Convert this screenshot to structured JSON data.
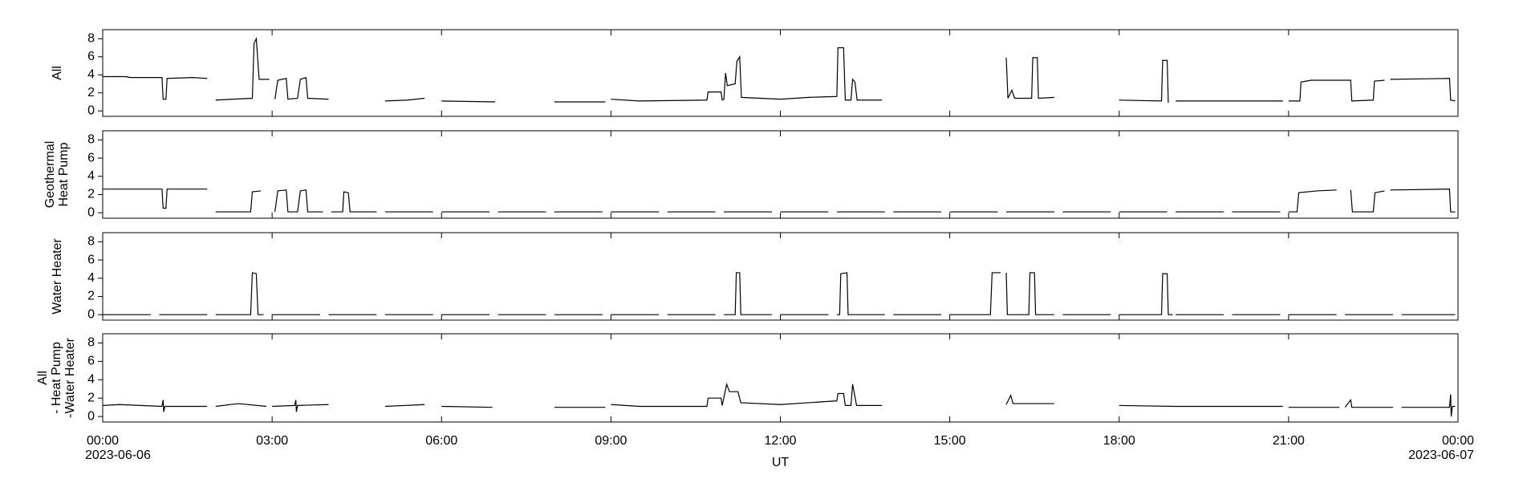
{
  "chart_data": [
    {
      "type": "line",
      "ylabel": [
        "All"
      ],
      "xlim": [
        0,
        24
      ],
      "ylim": [
        -0.6,
        9
      ],
      "yticks": [
        0,
        2,
        4,
        6,
        8
      ],
      "xticks": [
        {
          "value": 0,
          "label": "00:00"
        },
        {
          "value": 3,
          "label": "03:00"
        },
        {
          "value": 6,
          "label": "06:00"
        },
        {
          "value": 9,
          "label": "09:00"
        },
        {
          "value": 12,
          "label": "12:00"
        },
        {
          "value": 15,
          "label": "15:00"
        },
        {
          "value": 18,
          "label": "18:00"
        },
        {
          "value": 21,
          "label": "21:00"
        },
        {
          "value": 24,
          "label": "00:00"
        }
      ],
      "color": "#000000",
      "x": [
        0,
        0.4,
        0.5,
        1.05,
        1.07,
        1.12,
        1.14,
        1.6,
        1.85,
        1.9,
        2.0,
        2.3,
        2.65,
        2.68,
        2.72,
        2.77,
        2.95,
        3.0,
        3.05,
        3.1,
        3.25,
        3.28,
        3.45,
        3.5,
        3.6,
        3.63,
        4.0,
        4.5,
        5.0,
        5.4,
        5.7,
        5.8,
        6.0,
        6.95,
        7.5,
        8.0,
        8.9,
        8.95,
        9.0,
        9.5,
        10.7,
        10.72,
        10.95,
        10.97,
        11.0,
        11.03,
        11.06,
        11.2,
        11.23,
        11.28,
        11.31,
        12.0,
        12.5,
        13.0,
        13.02,
        13.12,
        13.15,
        13.25,
        13.28,
        13.32,
        13.36,
        13.8,
        15,
        16.0,
        16.03,
        16.1,
        16.15,
        16.45,
        16.47,
        16.55,
        16.57,
        16.85,
        17.5,
        18.0,
        18.75,
        18.77,
        18.85,
        18.87,
        18.95,
        19.0,
        20.9,
        20.95,
        21.0,
        21.2,
        21.22,
        21.4,
        22.1,
        22.12,
        22.5,
        22.52,
        22.7,
        22.75,
        22.8,
        23.85,
        23.87,
        23.95
      ],
      "values": [
        3.8,
        3.8,
        3.7,
        3.7,
        1.3,
        1.3,
        3.6,
        3.7,
        3.6,
        null,
        1.2,
        1.3,
        1.4,
        7.5,
        8,
        3.5,
        3.5,
        null,
        1.3,
        3.4,
        3.6,
        1.3,
        1.4,
        3.5,
        3.7,
        1.4,
        1.3,
        null,
        1.1,
        1.2,
        1.4,
        null,
        1.1,
        1.0,
        null,
        1.0,
        1.0,
        null,
        1.3,
        1.1,
        1.2,
        2.1,
        2.1,
        1.2,
        1.3,
        4.2,
        2.8,
        3.0,
        5.5,
        6.0,
        1.5,
        1.3,
        1.5,
        1.6,
        7.0,
        7.0,
        1.2,
        1.2,
        3.5,
        3.2,
        1.2,
        1.2,
        null,
        5.9,
        1.4,
        2.3,
        1.4,
        1.4,
        5.9,
        5.9,
        1.4,
        1.5,
        null,
        1.2,
        1.1,
        5.6,
        5.6,
        0.9,
        null,
        1.1,
        1.1,
        null,
        1.1,
        1.1,
        3.2,
        3.4,
        3.4,
        1.1,
        1.2,
        3.3,
        3.4,
        null,
        3.5,
        3.6,
        1.2,
        1.1
      ]
    },
    {
      "type": "line",
      "ylabel": [
        "Geothermal",
        "Heat Pump"
      ],
      "xlim": [
        0,
        24
      ],
      "ylim": [
        -0.6,
        9
      ],
      "yticks": [
        0,
        2,
        4,
        6,
        8
      ],
      "xticks": [
        {
          "value": 0,
          "label": "00:00"
        },
        {
          "value": 3,
          "label": "03:00"
        },
        {
          "value": 6,
          "label": "06:00"
        },
        {
          "value": 9,
          "label": "09:00"
        },
        {
          "value": 12,
          "label": "12:00"
        },
        {
          "value": 15,
          "label": "15:00"
        },
        {
          "value": 18,
          "label": "18:00"
        },
        {
          "value": 21,
          "label": "21:00"
        },
        {
          "value": 24,
          "label": "00:00"
        }
      ],
      "color": "#000000",
      "x": [
        0,
        1.05,
        1.07,
        1.12,
        1.14,
        1.85,
        1.9,
        2.0,
        2.62,
        2.65,
        2.8,
        2.9,
        3.05,
        3.1,
        3.25,
        3.28,
        3.45,
        3.5,
        3.6,
        3.63,
        3.9,
        4.0,
        4.05,
        4.25,
        4.27,
        4.35,
        4.38,
        4.85,
        4.9,
        5,
        5.85,
        5.9,
        6,
        6.85,
        6.9,
        7,
        7.85,
        7.9,
        8,
        8.85,
        8.9,
        9,
        9.85,
        9.9,
        10,
        10.85,
        10.9,
        11,
        11.85,
        11.9,
        12,
        12.85,
        12.9,
        13,
        13.85,
        13.9,
        14,
        14.85,
        14.9,
        15,
        15.85,
        15.9,
        16,
        16.85,
        16.9,
        17,
        17.85,
        17.9,
        18,
        18.85,
        18.9,
        19,
        19.85,
        19.9,
        20,
        20.85,
        20.9,
        21.0,
        21.15,
        21.18,
        21.5,
        21.85,
        21.95,
        22.1,
        22.13,
        22.5,
        22.53,
        22.7,
        22.75,
        22.8,
        23.85,
        23.87,
        23.95
      ],
      "values": [
        2.6,
        2.6,
        0.5,
        0.5,
        2.6,
        2.6,
        null,
        0.1,
        0.1,
        2.3,
        2.4,
        null,
        0.1,
        2.4,
        2.5,
        0.1,
        0.1,
        2.4,
        2.5,
        0.1,
        0.1,
        null,
        0.1,
        0.1,
        2.3,
        2.2,
        0.1,
        0.1,
        null,
        0.1,
        0.1,
        null,
        0.1,
        0.1,
        null,
        0.1,
        0.1,
        null,
        0.1,
        0.1,
        null,
        0.1,
        0.1,
        null,
        0.1,
        0.1,
        null,
        0.1,
        0.1,
        null,
        0.1,
        0.1,
        null,
        0.1,
        0.1,
        null,
        0.1,
        0.1,
        null,
        0.1,
        0.1,
        null,
        0.1,
        0.1,
        null,
        0.1,
        0.1,
        null,
        0.1,
        0.1,
        null,
        0.1,
        0.1,
        null,
        0.1,
        0.1,
        null,
        0.1,
        0.1,
        2.2,
        2.4,
        2.5,
        null,
        2.5,
        0.1,
        0.1,
        2.2,
        2.4,
        null,
        2.5,
        2.6,
        0.1,
        0.1
      ]
    },
    {
      "type": "line",
      "ylabel": [
        "Water Heater"
      ],
      "xlim": [
        0,
        24
      ],
      "ylim": [
        -0.6,
        9
      ],
      "yticks": [
        0,
        2,
        4,
        6,
        8
      ],
      "xticks": [
        {
          "value": 0,
          "label": "00:00"
        },
        {
          "value": 3,
          "label": "03:00"
        },
        {
          "value": 6,
          "label": "06:00"
        },
        {
          "value": 9,
          "label": "09:00"
        },
        {
          "value": 12,
          "label": "12:00"
        },
        {
          "value": 15,
          "label": "15:00"
        },
        {
          "value": 18,
          "label": "18:00"
        },
        {
          "value": 21,
          "label": "21:00"
        },
        {
          "value": 24,
          "label": "00:00"
        }
      ],
      "color": "#000000",
      "x": [
        0,
        0.85,
        0.9,
        1,
        1.85,
        1.9,
        2,
        2.62,
        2.65,
        2.72,
        2.75,
        2.85,
        2.9,
        3,
        3.85,
        3.9,
        4,
        4.85,
        4.9,
        5,
        5.85,
        5.9,
        6,
        6.85,
        6.9,
        7,
        7.85,
        7.9,
        8,
        8.85,
        8.9,
        9,
        9.85,
        9.9,
        10,
        10.85,
        10.9,
        11,
        11.2,
        11.22,
        11.28,
        11.3,
        11.85,
        11.9,
        12,
        12.85,
        12.9,
        13,
        13.05,
        13.07,
        13.18,
        13.2,
        13.85,
        13.9,
        14,
        14.85,
        14.9,
        15,
        15.72,
        15.75,
        15.9,
        15.95,
        16.0,
        16.02,
        16.4,
        16.42,
        16.5,
        16.52,
        16.85,
        16.9,
        17,
        17.85,
        17.9,
        18,
        18.75,
        18.77,
        18.85,
        18.87,
        18.95,
        18.98,
        19,
        19.85,
        19.9,
        20,
        20.85,
        20.9,
        21,
        21.85,
        21.9,
        22,
        22.85,
        22.9,
        23,
        23.95
      ],
      "values": [
        0,
        0,
        null,
        0,
        0,
        null,
        0,
        0,
        4.6,
        4.5,
        0,
        0,
        null,
        0,
        0,
        null,
        0,
        0,
        null,
        0,
        0,
        null,
        0,
        0,
        null,
        0,
        0,
        null,
        0,
        0,
        null,
        0,
        0,
        null,
        0,
        0,
        null,
        0,
        0,
        4.6,
        4.6,
        0,
        0,
        null,
        0,
        0,
        null,
        0,
        0,
        4.5,
        4.6,
        0,
        0,
        null,
        0,
        0,
        null,
        0,
        0,
        4.6,
        4.6,
        null,
        4.6,
        0,
        0,
        4.6,
        4.6,
        0,
        0,
        null,
        0,
        0,
        null,
        0,
        0,
        4.5,
        4.5,
        0,
        0,
        null,
        0,
        0,
        null,
        0,
        0,
        null,
        0,
        0,
        null,
        0,
        0,
        null,
        0,
        0
      ]
    },
    {
      "type": "line",
      "ylabel": [
        "All",
        "- Heat Pump",
        "-Water Heater"
      ],
      "xlabel": "UT",
      "start_date": "2023-06-06",
      "end_date": "2023-06-07",
      "xlim": [
        0,
        24
      ],
      "ylim": [
        -0.6,
        9
      ],
      "yticks": [
        0,
        2,
        4,
        6,
        8
      ],
      "xticks": [
        {
          "value": 0,
          "label": "00:00"
        },
        {
          "value": 3,
          "label": "03:00"
        },
        {
          "value": 6,
          "label": "06:00"
        },
        {
          "value": 9,
          "label": "09:00"
        },
        {
          "value": 12,
          "label": "12:00"
        },
        {
          "value": 15,
          "label": "15:00"
        },
        {
          "value": 18,
          "label": "18:00"
        },
        {
          "value": 21,
          "label": "21:00"
        },
        {
          "value": 24,
          "label": "00:00"
        }
      ],
      "color": "#000000",
      "x": [
        0,
        0.3,
        1.05,
        1.07,
        1.08,
        1.1,
        1.85,
        1.9,
        2,
        2.4,
        2.9,
        2.95,
        3.0,
        3.4,
        3.42,
        3.43,
        3.45,
        4.0,
        4.5,
        5,
        5.7,
        5.8,
        6,
        6.9,
        7.5,
        8,
        8.9,
        8.95,
        9,
        9.5,
        10.7,
        10.72,
        10.95,
        10.97,
        11.05,
        11.1,
        11.25,
        11.3,
        12,
        13,
        13.02,
        13.12,
        13.15,
        13.25,
        13.28,
        13.35,
        13.8,
        15,
        16.0,
        16.08,
        16.12,
        16.85,
        17.5,
        18,
        19,
        20.9,
        20.95,
        21,
        21.9,
        21.95,
        22,
        22.1,
        22.12,
        22.85,
        22.9,
        23,
        23.85,
        23.87,
        23.88,
        23.9,
        23.95
      ],
      "values": [
        1.2,
        1.3,
        1.1,
        1.8,
        0.5,
        1.1,
        1.1,
        null,
        1.1,
        1.4,
        1.1,
        null,
        1.1,
        1.2,
        1.8,
        0.5,
        1.2,
        1.3,
        null,
        1.1,
        1.3,
        null,
        1.1,
        1.0,
        null,
        1.0,
        1.0,
        null,
        1.3,
        1.1,
        1.1,
        2.0,
        2.0,
        1.2,
        3.5,
        2.7,
        2.7,
        1.5,
        1.3,
        1.7,
        2.5,
        2.5,
        1.2,
        1.2,
        3.5,
        1.2,
        1.2,
        null,
        1.3,
        2.3,
        1.4,
        1.4,
        null,
        1.2,
        1.1,
        1.1,
        null,
        1.0,
        1.0,
        null,
        1.0,
        1.8,
        1.0,
        1.0,
        null,
        1.0,
        1.0,
        2.4,
        0.0,
        1.1,
        1.1
      ]
    }
  ]
}
